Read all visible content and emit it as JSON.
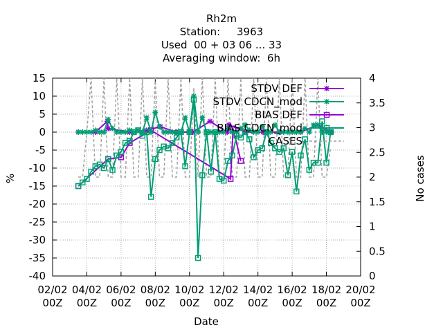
{
  "chart_data": {
    "type": "line",
    "title": "Rh2m",
    "subtitle": [
      "Station:     3963",
      "Used  00 + 03 06 ... 33",
      "Averaging window:  6h"
    ],
    "xlabel": "Date",
    "ylabel": "%",
    "y2label": "No cases",
    "xlim": [
      0,
      18
    ],
    "ylim": [
      -40,
      15
    ],
    "y2lim": [
      0,
      4
    ],
    "x_ticks": [
      {
        "x": 0,
        "line1": "02/02",
        "line2": "00Z"
      },
      {
        "x": 2,
        "line1": "04/02",
        "line2": "00Z"
      },
      {
        "x": 4,
        "line1": "06/02",
        "line2": "00Z"
      },
      {
        "x": 6,
        "line1": "08/02",
        "line2": "00Z"
      },
      {
        "x": 8,
        "line1": "10/02",
        "line2": "00Z"
      },
      {
        "x": 10,
        "line1": "12/02",
        "line2": "00Z"
      },
      {
        "x": 12,
        "line1": "14/02",
        "line2": "00Z"
      },
      {
        "x": 14,
        "line1": "16/02",
        "line2": "00Z"
      },
      {
        "x": 16,
        "line1": "18/02",
        "line2": "00Z"
      },
      {
        "x": 18,
        "line1": "20/02",
        "line2": "00Z"
      }
    ],
    "y_ticks": [
      15,
      10,
      5,
      0,
      -5,
      -10,
      -15,
      -20,
      -25,
      -30,
      -35,
      -40
    ],
    "y2_ticks": [
      "4",
      "3.5",
      "3",
      "2.5",
      "2",
      "1.5",
      "1",
      "0.5",
      "0"
    ],
    "grid": true,
    "legend": "top-right",
    "series": [
      {
        "name": "STDV DEF",
        "axis": "y",
        "color": "#9400d3",
        "marker": "star",
        "x": [
          1.5,
          2.5,
          3.2,
          3.25,
          4.5,
          5.5,
          6.3,
          7.2,
          8.2,
          9.2,
          10.2,
          10.3,
          11.3,
          12.3,
          13.3,
          14.5,
          15.5,
          16.3
        ],
        "y": [
          0,
          0,
          3,
          1,
          0,
          0.5,
          1.5,
          0,
          0,
          3,
          0,
          2,
          0,
          0,
          0,
          0,
          2,
          0
        ]
      },
      {
        "name": "STDV CDCN_mod",
        "axis": "y",
        "color": "#009e73",
        "marker": "star",
        "x": [
          1.5,
          1.75,
          2.0,
          2.25,
          2.5,
          2.75,
          3.0,
          3.25,
          3.5,
          3.75,
          4.0,
          4.25,
          4.5,
          4.75,
          5.0,
          5.25,
          5.5,
          5.75,
          6.0,
          6.25,
          6.5,
          6.75,
          7.0,
          7.25,
          7.5,
          7.75,
          8.0,
          8.25,
          8.5,
          8.75,
          9.0,
          9.25,
          9.5,
          9.75,
          10.0,
          10.25,
          10.5,
          10.75,
          11.0,
          11.25,
          11.5,
          11.75,
          12.0,
          12.25,
          12.5,
          12.75,
          13.0,
          13.25,
          13.5,
          13.75,
          14.0,
          14.25,
          14.5,
          14.75,
          15.0,
          15.25,
          15.5,
          15.75,
          16.0,
          16.25
        ],
        "y": [
          0,
          0,
          0,
          0,
          0.5,
          0,
          0,
          3.5,
          1,
          0,
          0,
          0,
          0.5,
          0,
          0.5,
          0,
          4,
          0,
          5.5,
          1.5,
          0,
          0,
          0,
          0,
          0,
          4,
          0,
          10,
          0,
          4,
          0,
          0,
          0,
          0,
          0,
          1,
          0,
          0,
          1,
          2,
          0.5,
          0,
          0,
          1.5,
          0,
          0,
          2,
          0,
          0,
          0,
          0,
          0,
          0,
          1,
          0,
          2,
          2,
          0,
          0,
          0
        ]
      },
      {
        "name": "BIAS DEF",
        "axis": "y",
        "color": "#9400d3",
        "marker": "square",
        "x": [
          1.5,
          3.25,
          4.0,
          4.5,
          5.75,
          10.4,
          10.55,
          11.0
        ],
        "y": [
          -15,
          -7.5,
          -7,
          -3,
          0.5,
          -13,
          1,
          -8
        ]
      },
      {
        "name": "BIAS CDCN_mod",
        "axis": "y",
        "color": "#009e73",
        "marker": "square",
        "x": [
          1.5,
          1.75,
          2.0,
          2.25,
          2.5,
          2.75,
          3.0,
          3.25,
          3.5,
          3.75,
          4.0,
          4.25,
          4.5,
          4.75,
          5.0,
          5.25,
          5.5,
          5.75,
          6.0,
          6.25,
          6.5,
          6.75,
          7.0,
          7.25,
          7.5,
          7.75,
          8.0,
          8.25,
          8.5,
          8.75,
          9.0,
          9.25,
          9.5,
          9.75,
          10.0,
          10.25,
          10.5,
          10.75,
          11.0,
          11.25,
          11.5,
          11.75,
          12.0,
          12.25,
          12.5,
          12.75,
          13.0,
          13.25,
          13.5,
          13.75,
          14.0,
          14.25,
          14.5,
          14.75,
          15.0,
          15.25,
          15.5,
          15.75,
          16.0,
          16.25
        ],
        "y": [
          -15,
          -14,
          -13,
          -11,
          -9.5,
          -9,
          -10,
          -7.5,
          -10.5,
          -6.5,
          -5.5,
          -3,
          -2.5,
          0,
          0.5,
          -1,
          0,
          -18,
          -7.5,
          -5,
          -4,
          -4.5,
          -3,
          -1.5,
          0,
          -9.5,
          0,
          9,
          -35,
          -12,
          0,
          -11,
          0,
          -13,
          -13.5,
          -8,
          -6.5,
          -1,
          -1.5,
          0,
          -2,
          -7,
          -5,
          -4.5,
          0,
          -3,
          -4.5,
          -5.5,
          -4.5,
          -12,
          -5.5,
          -16.5,
          -6.5,
          -2,
          -10.5,
          -8.5,
          -8.5,
          3,
          -8.5,
          0
        ]
      },
      {
        "name": "CASES",
        "axis": "y2",
        "color": "#a0a0a0",
        "dashed": true,
        "x": [
          1.5,
          1.75,
          2.0,
          2.25,
          2.5,
          2.75,
          3.0,
          3.25,
          3.5,
          3.75,
          4.0,
          4.25,
          4.5,
          4.75,
          5.0,
          5.25,
          5.5,
          5.75,
          6.0,
          6.25,
          6.5,
          6.75,
          7.0,
          7.25,
          7.5,
          7.75,
          8.0,
          8.25,
          8.5,
          8.75,
          9.0,
          9.25,
          9.5,
          9.75,
          10.0,
          10.25,
          10.5,
          10.75,
          11.0,
          11.25,
          11.5,
          11.75,
          12.0,
          12.25,
          12.5,
          12.75,
          13.0,
          13.25,
          13.5,
          13.75,
          14.0,
          14.25,
          14.5,
          14.75,
          15.0,
          15.25,
          15.5,
          15.75,
          16.0,
          16.25
        ],
        "y": [
          2,
          2,
          2.9,
          4,
          2,
          2,
          4,
          2,
          2,
          4,
          2,
          2,
          4,
          2,
          2,
          4,
          2,
          2,
          4,
          2,
          2,
          4,
          2,
          2,
          4,
          2,
          2,
          3.8,
          2,
          4,
          2,
          2,
          4,
          2,
          2,
          4,
          2,
          2,
          4,
          2,
          2,
          4,
          2,
          2,
          4,
          2,
          2,
          4,
          2,
          2,
          4,
          2,
          2,
          4,
          2,
          2,
          4,
          2,
          2,
          2.6
        ]
      }
    ]
  }
}
